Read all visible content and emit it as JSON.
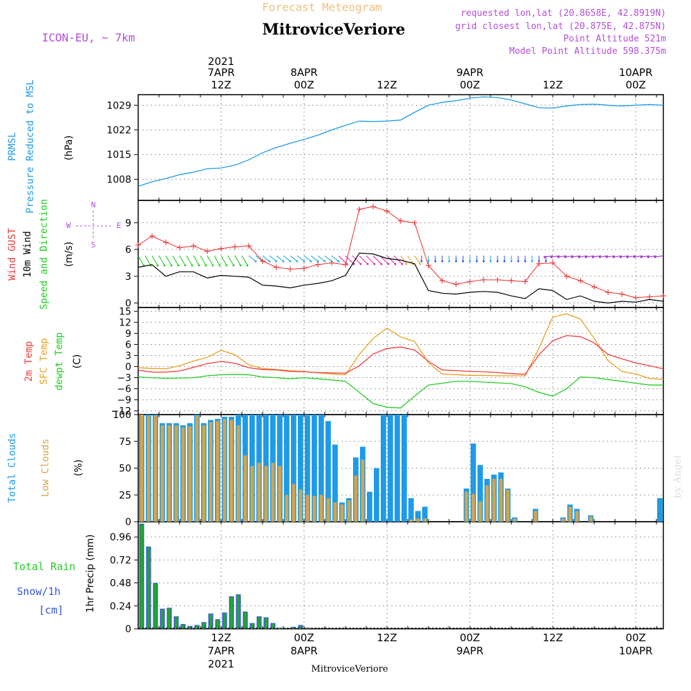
{
  "header": {
    "product": "Forecast Meteogram",
    "station": "MitroviceVeriore",
    "model": "ICON-EU, ~ 7km",
    "requested": "requested lon,lat (20.8658E, 42.8919N)",
    "closest": "grid closest lon,lat (20.875E, 42.875N)",
    "point_alt": "Point Altitude 521m",
    "model_alt": "Model Point Altitude 598.375m",
    "footer_station": "MitroviceVeriore",
    "credit": "by Angel"
  },
  "time_axis": {
    "top_labels": [
      {
        "hour": 12,
        "l1": "2021",
        "l2": "7APR",
        "l3": "12Z"
      },
      {
        "hour": 24,
        "l1": "",
        "l2": "8APR",
        "l3": "00Z"
      },
      {
        "hour": 36,
        "l1": "",
        "l2": "",
        "l3": "12Z"
      },
      {
        "hour": 48,
        "l1": "",
        "l2": "9APR",
        "l3": "00Z"
      },
      {
        "hour": 60,
        "l1": "",
        "l2": "",
        "l3": "12Z"
      },
      {
        "hour": 72,
        "l1": "",
        "l2": "10APR",
        "l3": "00Z"
      }
    ],
    "bottom_labels": [
      {
        "hour": 12,
        "l1": "12Z",
        "l2": "7APR",
        "l3": "2021"
      },
      {
        "hour": 24,
        "l1": "00Z",
        "l2": "8APR",
        "l3": ""
      },
      {
        "hour": 36,
        "l1": "12Z",
        "l2": "",
        "l3": ""
      },
      {
        "hour": 48,
        "l1": "00Z",
        "l2": "9APR",
        "l3": ""
      },
      {
        "hour": 60,
        "l1": "12Z",
        "l2": "",
        "l3": ""
      },
      {
        "hour": 72,
        "l1": "00Z",
        "l2": "10APR",
        "l3": ""
      }
    ]
  },
  "colors": {
    "pressure": "#1e9be8",
    "gust": "#ee3b3b",
    "wind": "#000000",
    "temp": "#ee3b3b",
    "sfc": "#e8a020",
    "dewpt": "#22cc22",
    "total_clouds": "#1e9be8",
    "low_clouds": "#d6a548",
    "rain": "#22aa22",
    "snow": "#3355dd",
    "title_orange": "#f0c080",
    "purple": "#b24fd6"
  },
  "panels": {
    "pressure": {
      "labels": [
        "PRMSL",
        "Pressure Reduced to MSL"
      ],
      "unit": "(hPa)"
    },
    "wind": {
      "labels": [
        "Wind GUST",
        "10m Wind",
        "Speed and Direction"
      ],
      "unit": "(m/s)",
      "compass": [
        "N",
        "W",
        "E",
        "S"
      ]
    },
    "temp": {
      "labels": [
        "2m Temp",
        "SFC Temp",
        "dewpt Temp"
      ],
      "unit": "(C)"
    },
    "clouds": {
      "labels": [
        "Total Clouds",
        "Low Clouds"
      ],
      "unit": "(%)"
    },
    "precip": {
      "labels": [
        "Total  Rain",
        "Snow/1h",
        "[cm]"
      ],
      "unit": "1hr Precip (mm)"
    }
  },
  "chart_data": [
    {
      "type": "line",
      "title": "PRMSL Pressure Reduced to MSL",
      "ylabel": "(hPa)",
      "ylim": [
        1002,
        1032
      ],
      "yticks": [
        1008,
        1015,
        1022,
        1029
      ],
      "x_hours": [
        0,
        2,
        4,
        6,
        8,
        10,
        12,
        14,
        16,
        18,
        20,
        22,
        24,
        26,
        28,
        30,
        32,
        34,
        36,
        38,
        40,
        42,
        44,
        46,
        48,
        50,
        52,
        54,
        56,
        58,
        60,
        62,
        64,
        66,
        68,
        70,
        72,
        74,
        76
      ],
      "series": [
        {
          "name": "PRMSL",
          "values": [
            1006,
            1007.3,
            1008.2,
            1009.3,
            1010,
            1011,
            1011.2,
            1012,
            1013.5,
            1015.5,
            1017,
            1018.2,
            1019.3,
            1020.5,
            1022,
            1023.3,
            1024.5,
            1024.4,
            1024.5,
            1024.8,
            1027,
            1029,
            1029.8,
            1030.3,
            1031,
            1031.4,
            1031.2,
            1030.5,
            1029.4,
            1028.3,
            1028.2,
            1028.8,
            1029.2,
            1029.3,
            1029,
            1028.8,
            1029,
            1029.2,
            1029
          ]
        }
      ]
    },
    {
      "type": "line",
      "title": "Wind GUST / 10m Wind Speed and Direction",
      "ylabel": "(m/s)",
      "ylim": [
        -0.5,
        11.5
      ],
      "yticks": [
        0,
        3,
        6,
        9
      ],
      "x_hours": [
        0,
        2,
        4,
        6,
        8,
        10,
        12,
        14,
        16,
        18,
        20,
        22,
        24,
        26,
        28,
        30,
        32,
        34,
        36,
        38,
        40,
        42,
        44,
        46,
        48,
        50,
        52,
        54,
        56,
        58,
        60,
        62,
        64,
        66,
        68,
        70,
        72,
        74,
        76
      ],
      "series": [
        {
          "name": "Wind GUST",
          "values": [
            6.5,
            7.5,
            6.8,
            6.2,
            6.4,
            5.8,
            6.1,
            6.3,
            6.4,
            4.7,
            4.0,
            3.8,
            3.9,
            4.3,
            4.5,
            4.3,
            10.5,
            10.8,
            10.3,
            9.2,
            9.0,
            4.2,
            2.5,
            2.1,
            2.4,
            2.6,
            2.6,
            2.5,
            2.4,
            4.4,
            4.5,
            3.0,
            2.5,
            1.8,
            1.2,
            1.0,
            0.6,
            0.7,
            0.8
          ]
        },
        {
          "name": "10m Wind",
          "values": [
            4.0,
            4.3,
            3.0,
            3.5,
            3.5,
            2.8,
            3.1,
            3.0,
            2.9,
            2.0,
            1.9,
            1.7,
            2.0,
            2.2,
            2.5,
            3.1,
            5.6,
            5.5,
            5.0,
            4.8,
            4.4,
            1.4,
            1.1,
            1.0,
            1.2,
            1.3,
            1.2,
            0.8,
            0.5,
            1.6,
            1.4,
            0.4,
            0.8,
            0.2,
            0.0,
            0.2,
            0.1,
            0.4,
            0.2
          ]
        }
      ]
    },
    {
      "type": "line",
      "title": "2m Temp / SFC Temp / dewpt Temp",
      "ylabel": "(C)",
      "ylim": [
        -13,
        16
      ],
      "yticks": [
        15,
        12,
        9,
        6,
        3,
        0,
        -3,
        -6,
        -9,
        -12
      ],
      "x_hours": [
        0,
        2,
        4,
        6,
        8,
        10,
        12,
        14,
        16,
        18,
        20,
        22,
        24,
        26,
        28,
        30,
        32,
        34,
        36,
        38,
        40,
        42,
        44,
        46,
        48,
        50,
        52,
        54,
        56,
        58,
        60,
        62,
        64,
        66,
        68,
        70,
        72,
        74,
        76
      ],
      "series": [
        {
          "name": "2m Temp",
          "values": [
            -1,
            -1.5,
            -1.5,
            -1.2,
            -0.2,
            0.8,
            1.4,
            0.9,
            -0.3,
            -0.8,
            -0.9,
            -1.3,
            -1.4,
            -1.6,
            -1.7,
            -1.8,
            0.2,
            3.4,
            4.9,
            5.3,
            4.5,
            1.4,
            -0.9,
            -1.1,
            -1.3,
            -1.4,
            -1.6,
            -1.9,
            -2.1,
            3.2,
            7.0,
            8.4,
            8.1,
            6.4,
            3.3,
            2.1,
            1.0,
            0.2,
            -0.6
          ]
        },
        {
          "name": "SFC Temp",
          "values": [
            -0.3,
            -0.5,
            -0.6,
            0.2,
            1.5,
            2.5,
            4.4,
            3.2,
            0.5,
            -0.5,
            -0.8,
            -1.1,
            -1.3,
            -1.7,
            -2.0,
            -2.2,
            3.3,
            7.6,
            10.4,
            8.0,
            6.8,
            1.0,
            -2.0,
            -2.2,
            -2.4,
            -2.4,
            -2.5,
            -2.5,
            -2.5,
            5.0,
            13.4,
            14.3,
            12.9,
            7.6,
            1.6,
            -1.3,
            -2.0,
            -3.2,
            -3.5
          ]
        },
        {
          "name": "dewpt Temp",
          "values": [
            -2.8,
            -3.0,
            -3.2,
            -3.1,
            -3.0,
            -2.5,
            -2.2,
            -2.1,
            -2.2,
            -2.8,
            -3.0,
            -3.3,
            -3.0,
            -3.3,
            -3.6,
            -4.0,
            -7.0,
            -10.0,
            -11.0,
            -11.2,
            -8.0,
            -5.0,
            -4.5,
            -4.0,
            -4.0,
            -4.2,
            -4.4,
            -4.6,
            -5.5,
            -7.0,
            -8.0,
            -6.0,
            -2.8,
            -3.0,
            -3.5,
            -4.0,
            -4.5,
            -5.0,
            -5.0
          ]
        }
      ]
    },
    {
      "type": "bar",
      "title": "Total Clouds / Low Clouds",
      "ylabel": "(%)",
      "ylim": [
        0,
        100
      ],
      "yticks": [
        0,
        25,
        50,
        75,
        100
      ],
      "x_hours": [
        0,
        1,
        2,
        3,
        4,
        5,
        6,
        7,
        8,
        9,
        10,
        11,
        12,
        13,
        14,
        15,
        16,
        17,
        18,
        19,
        20,
        21,
        22,
        23,
        24,
        25,
        26,
        27,
        28,
        29,
        30,
        31,
        32,
        33,
        34,
        35,
        36,
        37,
        38,
        39,
        40,
        41,
        42,
        43,
        44,
        45,
        46,
        47,
        48,
        49,
        50,
        51,
        52,
        53,
        54,
        55,
        56,
        57,
        58,
        59,
        60,
        61,
        62,
        63,
        64,
        65,
        66,
        67,
        68,
        69,
        70,
        71,
        72,
        73,
        74,
        75,
        76
      ],
      "series": [
        {
          "name": "Total Clouds",
          "values": [
            100,
            100,
            100,
            92,
            92,
            92,
            90,
            92,
            100,
            92,
            95,
            96,
            98,
            98,
            100,
            100,
            100,
            100,
            100,
            100,
            100,
            100,
            100,
            100,
            100,
            100,
            100,
            94,
            72,
            18,
            22,
            60,
            70,
            28,
            50,
            100,
            100,
            100,
            100,
            22,
            10,
            14,
            0,
            0,
            0,
            0,
            0,
            31,
            73,
            53,
            40,
            44,
            46,
            31,
            4,
            0,
            0,
            12,
            0,
            0,
            0,
            4,
            16,
            12,
            0,
            6,
            0,
            0,
            0,
            0,
            0,
            0,
            0,
            0,
            0,
            22,
            0
          ]
        },
        {
          "name": "Low Clouds",
          "values": [
            100,
            99,
            99,
            90,
            90,
            90,
            88,
            89,
            99,
            90,
            93,
            94,
            96,
            95,
            90,
            62,
            52,
            55,
            52,
            55,
            52,
            25,
            35,
            30,
            25,
            24,
            25,
            22,
            18,
            16,
            20,
            43,
            58,
            0,
            0,
            0,
            0,
            0,
            0,
            2,
            3,
            3,
            0,
            0,
            0,
            0,
            0,
            28,
            26,
            19,
            34,
            40,
            40,
            30,
            3,
            0,
            0,
            10,
            0,
            0,
            0,
            3,
            14,
            10,
            0,
            5,
            0,
            0,
            0,
            0,
            0,
            0,
            0,
            0,
            0,
            0,
            0
          ]
        }
      ]
    },
    {
      "type": "bar",
      "title": "1hr Precip",
      "ylabel": "1hr Precip (mm)",
      "ylim": [
        0,
        1.12
      ],
      "yticks": [
        0,
        0.24,
        0.48,
        0.72,
        0.96
      ],
      "x_hours": [
        0,
        1,
        2,
        3,
        4,
        5,
        6,
        7,
        8,
        9,
        10,
        11,
        12,
        13,
        14,
        15,
        16,
        17,
        18,
        19,
        20,
        21,
        22,
        23,
        24,
        25,
        26,
        27,
        28,
        29,
        30,
        31,
        32,
        33,
        34,
        35,
        36,
        37,
        38,
        39,
        40,
        41,
        42,
        43,
        44,
        45,
        46,
        47,
        48,
        49,
        50,
        51,
        52,
        53,
        54,
        55,
        56,
        57,
        58,
        59,
        60,
        61,
        62,
        63,
        64,
        65,
        66,
        67,
        68,
        69,
        70,
        71,
        72,
        73,
        74,
        75,
        76
      ],
      "series": [
        {
          "name": "Total Rain",
          "values": [
            1.1,
            0.86,
            0.48,
            0.21,
            0.22,
            0.13,
            0.05,
            0.03,
            0.04,
            0.07,
            0.16,
            0.1,
            0.17,
            0.34,
            0.36,
            0.18,
            0.06,
            0.13,
            0.12,
            0.06,
            0.01,
            0,
            0.02,
            0.04,
            0.01,
            0,
            0,
            0,
            0,
            0,
            0,
            0,
            0,
            0,
            0,
            0,
            0,
            0,
            0,
            0,
            0,
            0,
            0,
            0,
            0,
            0,
            0,
            0,
            0,
            0,
            0,
            0,
            0,
            0,
            0,
            0,
            0,
            0,
            0,
            0,
            0,
            0,
            0,
            0,
            0,
            0,
            0,
            0,
            0,
            0,
            0,
            0,
            0,
            0,
            0,
            0,
            0
          ]
        }
      ]
    }
  ]
}
